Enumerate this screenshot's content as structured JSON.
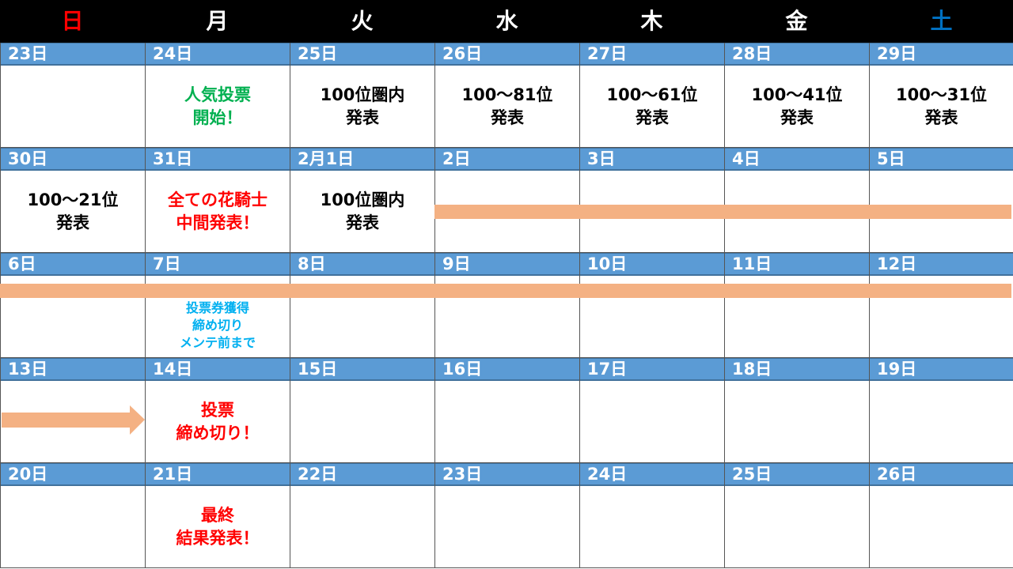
{
  "weekdays": [
    {
      "label": "日",
      "color": "#ff0000"
    },
    {
      "label": "月",
      "color": "#ffffff"
    },
    {
      "label": "火",
      "color": "#ffffff"
    },
    {
      "label": "水",
      "color": "#ffffff"
    },
    {
      "label": "木",
      "color": "#ffffff"
    },
    {
      "label": "金",
      "color": "#ffffff"
    },
    {
      "label": "土",
      "color": "#0070c0"
    }
  ],
  "colors": {
    "header_bg": "#000000",
    "date_bar": "#5b9bd5",
    "period_bar": "#f4b183",
    "green": "#00b050",
    "red": "#ff0000",
    "cyan": "#00b0f0",
    "black": "#000000"
  },
  "weeks": [
    {
      "days": [
        {
          "date": "23日",
          "lines": []
        },
        {
          "date": "24日",
          "lines": [
            "人気投票",
            "開始！"
          ],
          "color": "#00b050"
        },
        {
          "date": "25日",
          "lines": [
            "100位圏内",
            "発表"
          ],
          "color": "#000000"
        },
        {
          "date": "26日",
          "lines": [
            "100～81位",
            "発表"
          ],
          "color": "#000000"
        },
        {
          "date": "27日",
          "lines": [
            "100～61位",
            "発表"
          ],
          "color": "#000000"
        },
        {
          "date": "28日",
          "lines": [
            "100～41位",
            "発表"
          ],
          "color": "#000000"
        },
        {
          "date": "29日",
          "lines": [
            "100～31位",
            "発表"
          ],
          "color": "#000000"
        }
      ]
    },
    {
      "days": [
        {
          "date": "30日",
          "lines": [
            "100～21位",
            "発表"
          ],
          "color": "#000000"
        },
        {
          "date": "31日",
          "lines": [
            "全ての花騎士",
            "中間発表！"
          ],
          "color": "#ff0000"
        },
        {
          "date": "2月1日",
          "lines": [
            "100位圏内",
            "発表"
          ],
          "color": "#000000"
        },
        {
          "date": "2日",
          "lines": []
        },
        {
          "date": "3日",
          "lines": []
        },
        {
          "date": "4日",
          "lines": []
        },
        {
          "date": "5日",
          "lines": []
        }
      ]
    },
    {
      "days": [
        {
          "date": "6日",
          "lines": []
        },
        {
          "date": "7日",
          "lines": [
            "投票券獲得",
            "締め切り",
            "メンテ前まで"
          ],
          "color": "#00b0f0",
          "small": true
        },
        {
          "date": "8日",
          "lines": []
        },
        {
          "date": "9日",
          "lines": []
        },
        {
          "date": "10日",
          "lines": []
        },
        {
          "date": "11日",
          "lines": []
        },
        {
          "date": "12日",
          "lines": []
        }
      ]
    },
    {
      "days": [
        {
          "date": "13日",
          "lines": []
        },
        {
          "date": "14日",
          "lines": [
            "投票",
            "締め切り！"
          ],
          "color": "#ff0000"
        },
        {
          "date": "15日",
          "lines": []
        },
        {
          "date": "16日",
          "lines": []
        },
        {
          "date": "17日",
          "lines": []
        },
        {
          "date": "18日",
          "lines": []
        },
        {
          "date": "19日",
          "lines": []
        }
      ]
    },
    {
      "days": [
        {
          "date": "20日",
          "lines": []
        },
        {
          "date": "21日",
          "lines": [
            "最終",
            "結果発表！"
          ],
          "color": "#ff0000"
        },
        {
          "date": "22日",
          "lines": []
        },
        {
          "date": "23日",
          "lines": []
        },
        {
          "date": "24日",
          "lines": []
        },
        {
          "date": "25日",
          "lines": []
        },
        {
          "date": "26日",
          "lines": []
        }
      ]
    }
  ]
}
